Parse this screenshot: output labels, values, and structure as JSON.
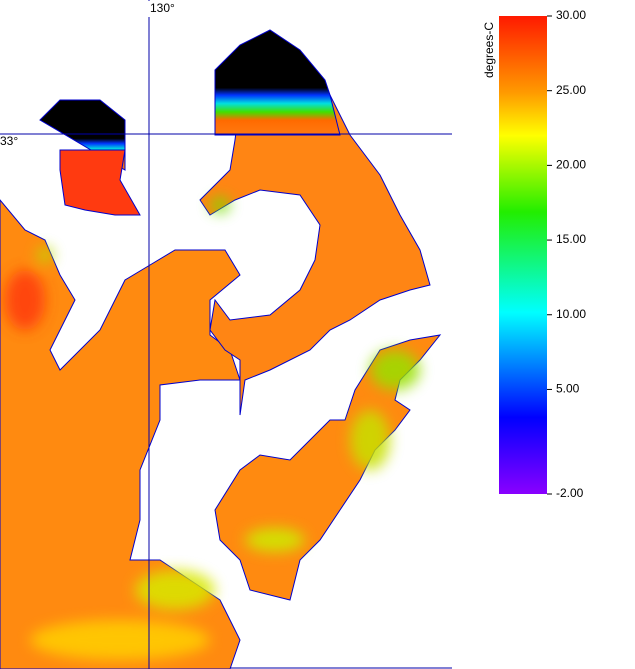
{
  "map": {
    "graticule": {
      "lon_label": "130°",
      "lat_label": "33°"
    },
    "colorbar": {
      "title": "degrees-C",
      "lim": [
        -2,
        30
      ],
      "ticks": [
        {
          "value": 30,
          "label": "30.00"
        },
        {
          "value": 25,
          "label": "25.00"
        },
        {
          "value": 20,
          "label": "20.00"
        },
        {
          "value": 15,
          "label": "15.00"
        },
        {
          "value": 10,
          "label": "10.00"
        },
        {
          "value": 5,
          "label": "5.00"
        },
        {
          "value": -2,
          "label": "-2.00"
        }
      ]
    }
  }
}
